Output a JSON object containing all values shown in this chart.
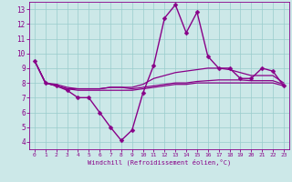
{
  "xlabel": "Windchill (Refroidissement éolien,°C)",
  "xlim": [
    -0.5,
    23.5
  ],
  "ylim": [
    3.5,
    13.5
  ],
  "xticks": [
    0,
    1,
    2,
    3,
    4,
    5,
    6,
    7,
    8,
    9,
    10,
    11,
    12,
    13,
    14,
    15,
    16,
    17,
    18,
    19,
    20,
    21,
    22,
    23
  ],
  "yticks": [
    4,
    5,
    6,
    7,
    8,
    9,
    10,
    11,
    12,
    13
  ],
  "bg_color": "#cce8e8",
  "line_color": "#880088",
  "grid_color": "#99cccc",
  "lines": [
    {
      "x": [
        0,
        1,
        2,
        3,
        4,
        5,
        6,
        7,
        8,
        9,
        10,
        11,
        12,
        13,
        14,
        15,
        16,
        17,
        18,
        19,
        20,
        21,
        22,
        23
      ],
      "y": [
        9.5,
        8.0,
        7.8,
        7.5,
        7.0,
        7.0,
        6.0,
        5.0,
        4.1,
        4.8,
        7.3,
        9.2,
        12.4,
        13.3,
        11.4,
        12.8,
        9.8,
        9.0,
        9.0,
        8.3,
        8.3,
        9.0,
        8.8,
        7.8
      ],
      "marker": "D",
      "markersize": 2.5,
      "lw": 1.0
    },
    {
      "x": [
        0,
        1,
        2,
        3,
        4,
        5,
        6,
        7,
        8,
        9,
        10,
        11,
        12,
        13,
        14,
        15,
        16,
        17,
        18,
        19,
        20,
        21,
        22,
        23
      ],
      "y": [
        9.5,
        8.0,
        7.9,
        7.7,
        7.6,
        7.6,
        7.6,
        7.7,
        7.7,
        7.7,
        7.9,
        8.3,
        8.5,
        8.7,
        8.8,
        8.9,
        9.0,
        9.0,
        8.9,
        8.7,
        8.5,
        8.5,
        8.5,
        8.0
      ],
      "marker": null,
      "markersize": 0,
      "lw": 0.9
    },
    {
      "x": [
        0,
        1,
        2,
        3,
        4,
        5,
        6,
        7,
        8,
        9,
        10,
        11,
        12,
        13,
        14,
        15,
        16,
        17,
        18,
        19,
        20,
        21,
        22,
        23
      ],
      "y": [
        9.5,
        8.0,
        7.8,
        7.6,
        7.6,
        7.6,
        7.6,
        7.7,
        7.7,
        7.6,
        7.7,
        7.8,
        7.9,
        8.0,
        8.0,
        8.1,
        8.15,
        8.2,
        8.2,
        8.2,
        8.15,
        8.15,
        8.15,
        7.9
      ],
      "marker": null,
      "markersize": 0,
      "lw": 0.9
    },
    {
      "x": [
        0,
        1,
        2,
        3,
        4,
        5,
        6,
        7,
        8,
        9,
        10,
        11,
        12,
        13,
        14,
        15,
        16,
        17,
        18,
        19,
        20,
        21,
        22,
        23
      ],
      "y": [
        9.5,
        8.0,
        7.8,
        7.6,
        7.5,
        7.5,
        7.5,
        7.5,
        7.5,
        7.5,
        7.6,
        7.7,
        7.8,
        7.9,
        7.9,
        8.0,
        8.0,
        8.0,
        8.0,
        8.0,
        8.0,
        8.0,
        8.0,
        7.8
      ],
      "marker": null,
      "markersize": 0,
      "lw": 0.9
    }
  ]
}
